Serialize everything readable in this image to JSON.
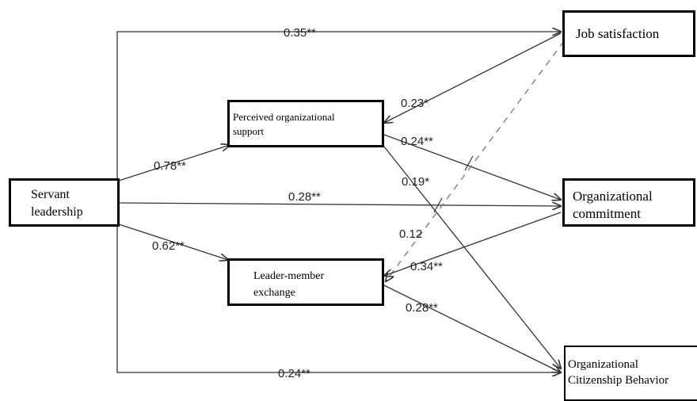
{
  "nodes": {
    "servant": [
      "Servant",
      "leadership"
    ],
    "job": [
      "Job satisfaction"
    ],
    "pos": [
      "Perceived organizational",
      "support"
    ],
    "oc": [
      "Organizational",
      "commitment"
    ],
    "lmx": [
      "Leader-member",
      "exchange"
    ],
    "ocb": [
      "Organizational",
      "Citizenship Behavior"
    ]
  },
  "paths": {
    "sl_job": "0.35**",
    "sl_pos": "0.78**",
    "sl_oc": "0.28**",
    "sl_lmx": "0.62**",
    "sl_ocb": "0.24**",
    "pos_job": "0.23*",
    "pos_oc": "0.24**",
    "pos_ocb": "0.19*",
    "lmx_job": "0.12",
    "lmx_oc": "0.34**",
    "lmx_ocb": "0.28**"
  },
  "colors": {
    "line": "#333333",
    "dashed": "#777777"
  }
}
